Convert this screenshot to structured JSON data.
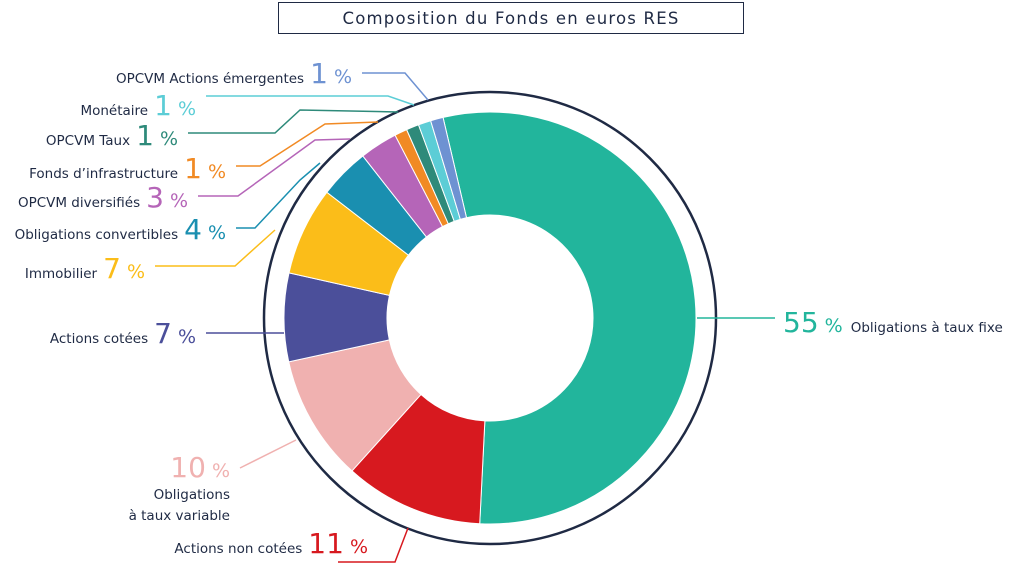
{
  "chart_data": {
    "type": "donut",
    "title": "Composition du Fonds en euros RES",
    "unit": "%",
    "slices": [
      {
        "label": "Obligations à taux fixe",
        "value": 55,
        "color": "#22b59c"
      },
      {
        "label": "Actions non cotées",
        "value": 11,
        "color": "#d7191f"
      },
      {
        "label": "Obligations à taux variable",
        "value": 10,
        "color": "#f0b1b0"
      },
      {
        "label": "Actions cotées",
        "value": 7,
        "color": "#4b4f9a"
      },
      {
        "label": "Immobilier",
        "value": 7,
        "color": "#fbbd19"
      },
      {
        "label": "Obligations convertibles",
        "value": 4,
        "color": "#1a8fb0"
      },
      {
        "label": "OPCVM diversifiés",
        "value": 3,
        "color": "#b565b8"
      },
      {
        "label": "Fonds d’infrastructure",
        "value": 1,
        "color": "#f18a24"
      },
      {
        "label": "OPCVM Taux",
        "value": 1,
        "color": "#2e8a7a"
      },
      {
        "label": "Monétaire",
        "value": 1,
        "color": "#5ccdd6"
      },
      {
        "label": "OPCVM Actions émergentes",
        "value": 1,
        "color": "#6e92d2"
      }
    ]
  }
}
